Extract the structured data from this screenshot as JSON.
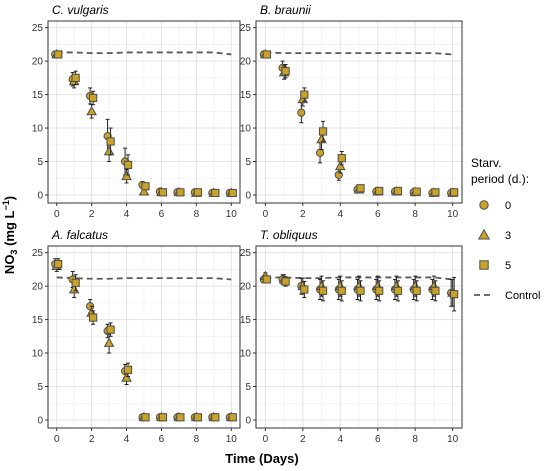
{
  "figure": {
    "ylabel_main": "NO",
    "ylabel_sub": "3",
    "ylabel_unit_open": " (mg L",
    "ylabel_sup": "−1",
    "ylabel_unit_close": ")",
    "xlabel": "Time (Days)"
  },
  "legend": {
    "title_line1": "Starv.",
    "title_line2": "period (d.):",
    "items": [
      {
        "label": "0",
        "shape": "circle"
      },
      {
        "label": "3",
        "shape": "triangle"
      },
      {
        "label": "5",
        "shape": "square"
      },
      {
        "label": "Control",
        "shape": "dash"
      }
    ]
  },
  "colors": {
    "marker_fill": "#C9A227",
    "marker_stroke": "#4d4d4d",
    "control_line": "#595959",
    "panel_bg": "#ffffff",
    "grid_major": "#e3e3e3",
    "grid_minor": "#f1f1f1",
    "panel_border": "#333333"
  },
  "chart_data": [
    {
      "type": "scatter",
      "title": "C. vulgaris",
      "x": [
        0,
        1,
        2,
        3,
        4,
        5,
        6,
        7,
        8,
        9,
        10
      ],
      "xlim": [
        -0.5,
        10.5
      ],
      "ylim": [
        -1.2,
        26
      ],
      "xticks": [
        0,
        2,
        4,
        6,
        8,
        10
      ],
      "yticks": [
        0,
        5,
        10,
        15,
        20,
        25
      ],
      "series": [
        {
          "name": "0",
          "shape": "circle",
          "values": [
            21.0,
            17.3,
            14.8,
            8.8,
            5.0,
            1.5,
            0.5,
            0.4,
            0.4,
            0.3,
            0.3
          ],
          "err": [
            0.5,
            1.0,
            1.2,
            2.5,
            2.0,
            0.5,
            0.2,
            0.2,
            0.2,
            0.2,
            0.2
          ]
        },
        {
          "name": "3",
          "shape": "triangle",
          "values": [
            21.0,
            17.0,
            12.5,
            6.5,
            2.8,
            0.5,
            0.4,
            0.4,
            0.3,
            0.3,
            0.3
          ],
          "err": [
            0.5,
            1.0,
            1.0,
            1.5,
            1.0,
            0.3,
            0.2,
            0.2,
            0.2,
            0.2,
            0.2
          ]
        },
        {
          "name": "5",
          "shape": "square",
          "values": [
            21.0,
            17.5,
            14.5,
            8.0,
            4.5,
            1.3,
            0.4,
            0.4,
            0.4,
            0.3,
            0.3
          ],
          "err": [
            0.5,
            1.0,
            1.0,
            2.0,
            1.5,
            0.5,
            0.2,
            0.2,
            0.2,
            0.2,
            0.2
          ]
        },
        {
          "name": "Control",
          "shape": "dash",
          "values": [
            21.3,
            21.3,
            21.2,
            21.2,
            21.3,
            21.3,
            21.3,
            21.3,
            21.3,
            21.3,
            21.0
          ]
        }
      ]
    },
    {
      "type": "scatter",
      "title": "B. braunii",
      "x": [
        0,
        1,
        2,
        3,
        4,
        5,
        6,
        7,
        8,
        9,
        10
      ],
      "xlim": [
        -0.5,
        10.5
      ],
      "ylim": [
        -1.2,
        26
      ],
      "xticks": [
        0,
        2,
        4,
        6,
        8,
        10
      ],
      "yticks": [
        0,
        5,
        10,
        15,
        20,
        25
      ],
      "series": [
        {
          "name": "0",
          "shape": "circle",
          "values": [
            21.0,
            19.0,
            12.3,
            6.3,
            3.0,
            0.8,
            0.5,
            0.5,
            0.4,
            0.3,
            0.3
          ],
          "err": [
            0.5,
            1.0,
            1.5,
            1.5,
            0.8,
            0.3,
            0.2,
            0.2,
            0.2,
            0.2,
            0.2
          ]
        },
        {
          "name": "3",
          "shape": "triangle",
          "values": [
            21.0,
            18.3,
            14.3,
            8.3,
            4.3,
            0.8,
            0.5,
            0.5,
            0.4,
            0.3,
            0.3
          ],
          "err": [
            0.5,
            1.0,
            1.0,
            1.5,
            1.0,
            0.3,
            0.2,
            0.2,
            0.2,
            0.2,
            0.2
          ]
        },
        {
          "name": "5",
          "shape": "square",
          "values": [
            21.0,
            18.5,
            15.0,
            9.5,
            5.5,
            1.0,
            0.6,
            0.6,
            0.5,
            0.4,
            0.4
          ],
          "err": [
            0.5,
            1.0,
            1.0,
            1.5,
            1.0,
            0.4,
            0.2,
            0.2,
            0.2,
            0.2,
            0.2
          ]
        },
        {
          "name": "Control",
          "shape": "dash",
          "values": [
            21.3,
            21.2,
            21.2,
            21.2,
            21.2,
            21.2,
            21.2,
            21.2,
            21.2,
            21.2,
            21.0
          ]
        }
      ]
    },
    {
      "type": "scatter",
      "title": "A. falcatus",
      "x": [
        0,
        1,
        2,
        3,
        4,
        5,
        6,
        7,
        8,
        9,
        10
      ],
      "xlim": [
        -0.5,
        10.5
      ],
      "ylim": [
        -1.2,
        26
      ],
      "xticks": [
        0,
        2,
        4,
        6,
        8,
        10
      ],
      "yticks": [
        0,
        5,
        10,
        15,
        20,
        25
      ],
      "series": [
        {
          "name": "0",
          "shape": "circle",
          "values": [
            23.3,
            21.0,
            17.0,
            13.3,
            7.3,
            0.4,
            0.4,
            0.4,
            0.4,
            0.4,
            0.4
          ],
          "err": [
            0.8,
            1.2,
            1.0,
            1.0,
            1.0,
            0.2,
            0.2,
            0.2,
            0.2,
            0.2,
            0.2
          ]
        },
        {
          "name": "3",
          "shape": "triangle",
          "values": [
            23.0,
            19.5,
            16.0,
            11.5,
            6.3,
            0.4,
            0.4,
            0.4,
            0.4,
            0.4,
            0.4
          ],
          "err": [
            0.8,
            1.2,
            1.0,
            1.5,
            1.0,
            0.2,
            0.2,
            0.2,
            0.2,
            0.2,
            0.2
          ]
        },
        {
          "name": "5",
          "shape": "square",
          "values": [
            23.3,
            20.5,
            15.3,
            13.5,
            7.5,
            0.4,
            0.4,
            0.4,
            0.4,
            0.4,
            0.4
          ],
          "err": [
            0.8,
            1.2,
            1.0,
            1.0,
            1.0,
            0.2,
            0.2,
            0.2,
            0.2,
            0.2,
            0.2
          ]
        },
        {
          "name": "Control",
          "shape": "dash",
          "values": [
            21.3,
            21.2,
            21.1,
            21.1,
            21.2,
            21.2,
            21.2,
            21.2,
            21.2,
            21.2,
            21.0
          ]
        }
      ]
    },
    {
      "type": "scatter",
      "title": "T. obliquus",
      "x": [
        0,
        1,
        2,
        3,
        4,
        5,
        6,
        7,
        8,
        9,
        10
      ],
      "xlim": [
        -0.5,
        10.5
      ],
      "ylim": [
        -1.2,
        26
      ],
      "xticks": [
        0,
        2,
        4,
        6,
        8,
        10
      ],
      "yticks": [
        0,
        5,
        10,
        15,
        20,
        25
      ],
      "series": [
        {
          "name": "0",
          "shape": "circle",
          "values": [
            21.0,
            21.0,
            20.0,
            19.5,
            19.5,
            19.5,
            19.5,
            19.5,
            19.5,
            19.5,
            19.0
          ],
          "err": [
            0.5,
            0.7,
            1.2,
            1.5,
            1.5,
            1.5,
            1.5,
            1.5,
            1.5,
            1.5,
            2.0
          ]
        },
        {
          "name": "3",
          "shape": "triangle",
          "values": [
            21.5,
            21.0,
            20.0,
            20.0,
            20.0,
            20.0,
            20.0,
            20.0,
            20.0,
            20.0,
            19.0
          ],
          "err": [
            0.5,
            0.7,
            1.2,
            1.5,
            1.5,
            1.5,
            1.5,
            1.5,
            1.5,
            1.5,
            2.0
          ]
        },
        {
          "name": "5",
          "shape": "square",
          "values": [
            21.0,
            20.7,
            19.5,
            19.3,
            19.3,
            19.3,
            19.3,
            19.3,
            19.3,
            19.3,
            18.8
          ],
          "err": [
            0.5,
            0.7,
            1.2,
            1.5,
            1.5,
            1.5,
            1.5,
            1.5,
            1.5,
            1.5,
            2.5
          ]
        },
        {
          "name": "Control",
          "shape": "dash",
          "values": [
            21.3,
            21.3,
            21.2,
            21.2,
            21.3,
            21.3,
            21.3,
            21.3,
            21.3,
            21.3,
            21.0
          ]
        }
      ]
    }
  ]
}
